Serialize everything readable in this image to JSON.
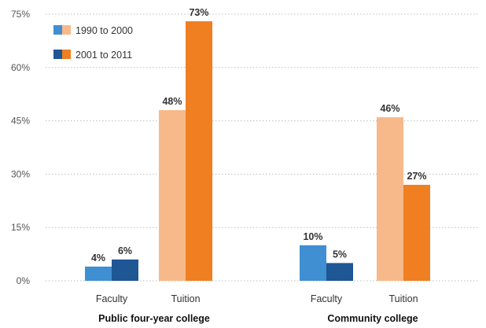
{
  "chart_data": {
    "type": "bar",
    "ylim": [
      0,
      75
    ],
    "yticks": [
      "0%",
      "15%",
      "30%",
      "45%",
      "60%",
      "75%"
    ],
    "ytick_values": [
      0,
      15,
      30,
      45,
      60,
      75
    ],
    "grid": true,
    "legend_position": "top-left",
    "legend": [
      {
        "label": "1990 to 2000",
        "colors": [
          "#3f8fd2",
          "#f7b98a"
        ]
      },
      {
        "label": "2001 to 2011",
        "colors": [
          "#1f5694",
          "#f07f22"
        ]
      }
    ],
    "groups": [
      {
        "name": "Public four-year college",
        "categories": [
          {
            "name": "Faculty",
            "values": [
              4,
              6
            ],
            "labels": [
              "4%",
              "6%"
            ],
            "colors": [
              "#3f8fd2",
              "#1f5694"
            ]
          },
          {
            "name": "Tuition",
            "values": [
              48,
              73
            ],
            "labels": [
              "48%",
              "73%"
            ],
            "colors": [
              "#f7b98a",
              "#f07f22"
            ]
          }
        ]
      },
      {
        "name": "Community college",
        "categories": [
          {
            "name": "Faculty",
            "values": [
              10,
              5
            ],
            "labels": [
              "10%",
              "5%"
            ],
            "colors": [
              "#3f8fd2",
              "#1f5694"
            ]
          },
          {
            "name": "Tuition",
            "values": [
              46,
              27
            ],
            "labels": [
              "46%",
              "27%"
            ],
            "colors": [
              "#f7b98a",
              "#f07f22"
            ]
          }
        ]
      }
    ]
  }
}
